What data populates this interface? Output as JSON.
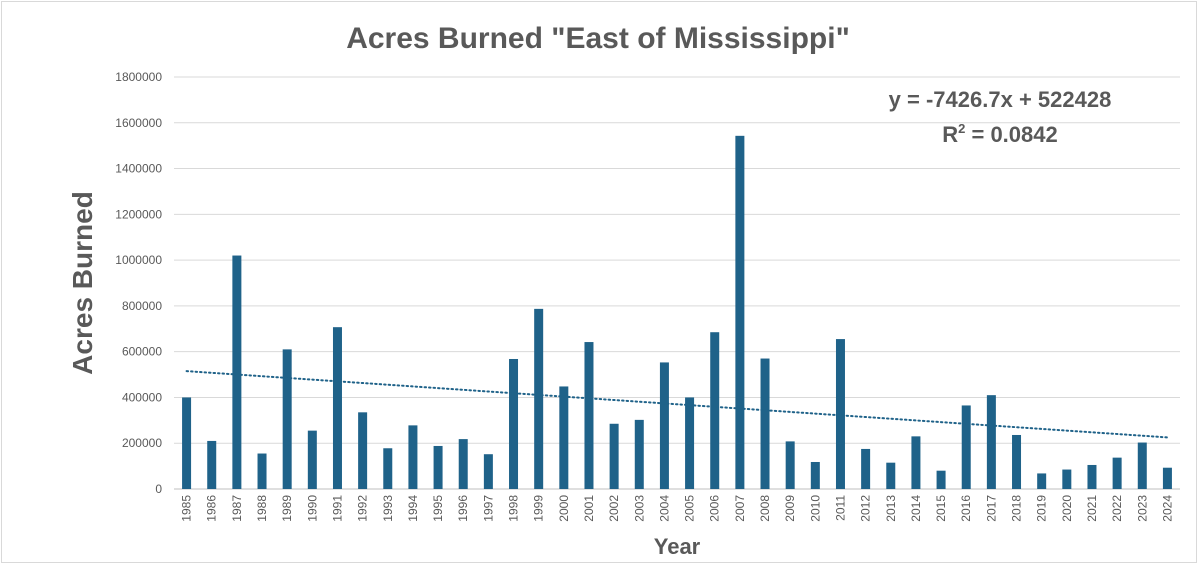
{
  "chart_data": {
    "type": "bar",
    "title": "Acres Burned \"East of Mississippi\"",
    "xlabel": "Year",
    "ylabel": "Acres Burned",
    "ylim": [
      0,
      1800000
    ],
    "yticks": [
      "0",
      "200000",
      "400000",
      "600000",
      "800000",
      "1000000",
      "1200000",
      "1400000",
      "1600000",
      "1800000"
    ],
    "grid": true,
    "bar_color": "#1f6289",
    "trendline": {
      "type": "linear",
      "style": "dotted",
      "color": "#1f6289",
      "equation_label": "y = -7426.7x + 522428",
      "r2_label_prefix": "R",
      "r2_label_sup": "2",
      "r2_label_suffix": " = 0.0842",
      "slope": -7426.7,
      "intercept": 522428
    },
    "categories": [
      "1985",
      "1986",
      "1987",
      "1988",
      "1989",
      "1990",
      "1991",
      "1992",
      "1993",
      "1994",
      "1995",
      "1996",
      "1997",
      "1998",
      "1999",
      "2000",
      "2001",
      "2002",
      "2003",
      "2004",
      "2005",
      "2006",
      "2007",
      "2008",
      "2009",
      "2010",
      "2011",
      "2012",
      "2013",
      "2014",
      "2015",
      "2016",
      "2017",
      "2018",
      "2019",
      "2020",
      "2021",
      "2022",
      "2023",
      "2024"
    ],
    "values": [
      400000,
      210000,
      1020000,
      155000,
      610000,
      255000,
      707000,
      335000,
      178000,
      278000,
      188000,
      218000,
      152000,
      568000,
      787000,
      448000,
      642000,
      285000,
      302000,
      553000,
      400000,
      685000,
      1543000,
      570000,
      208000,
      118000,
      655000,
      175000,
      115000,
      230000,
      80000,
      365000,
      410000,
      236000,
      68000,
      85000,
      105000,
      137000,
      203000,
      93000
    ]
  }
}
